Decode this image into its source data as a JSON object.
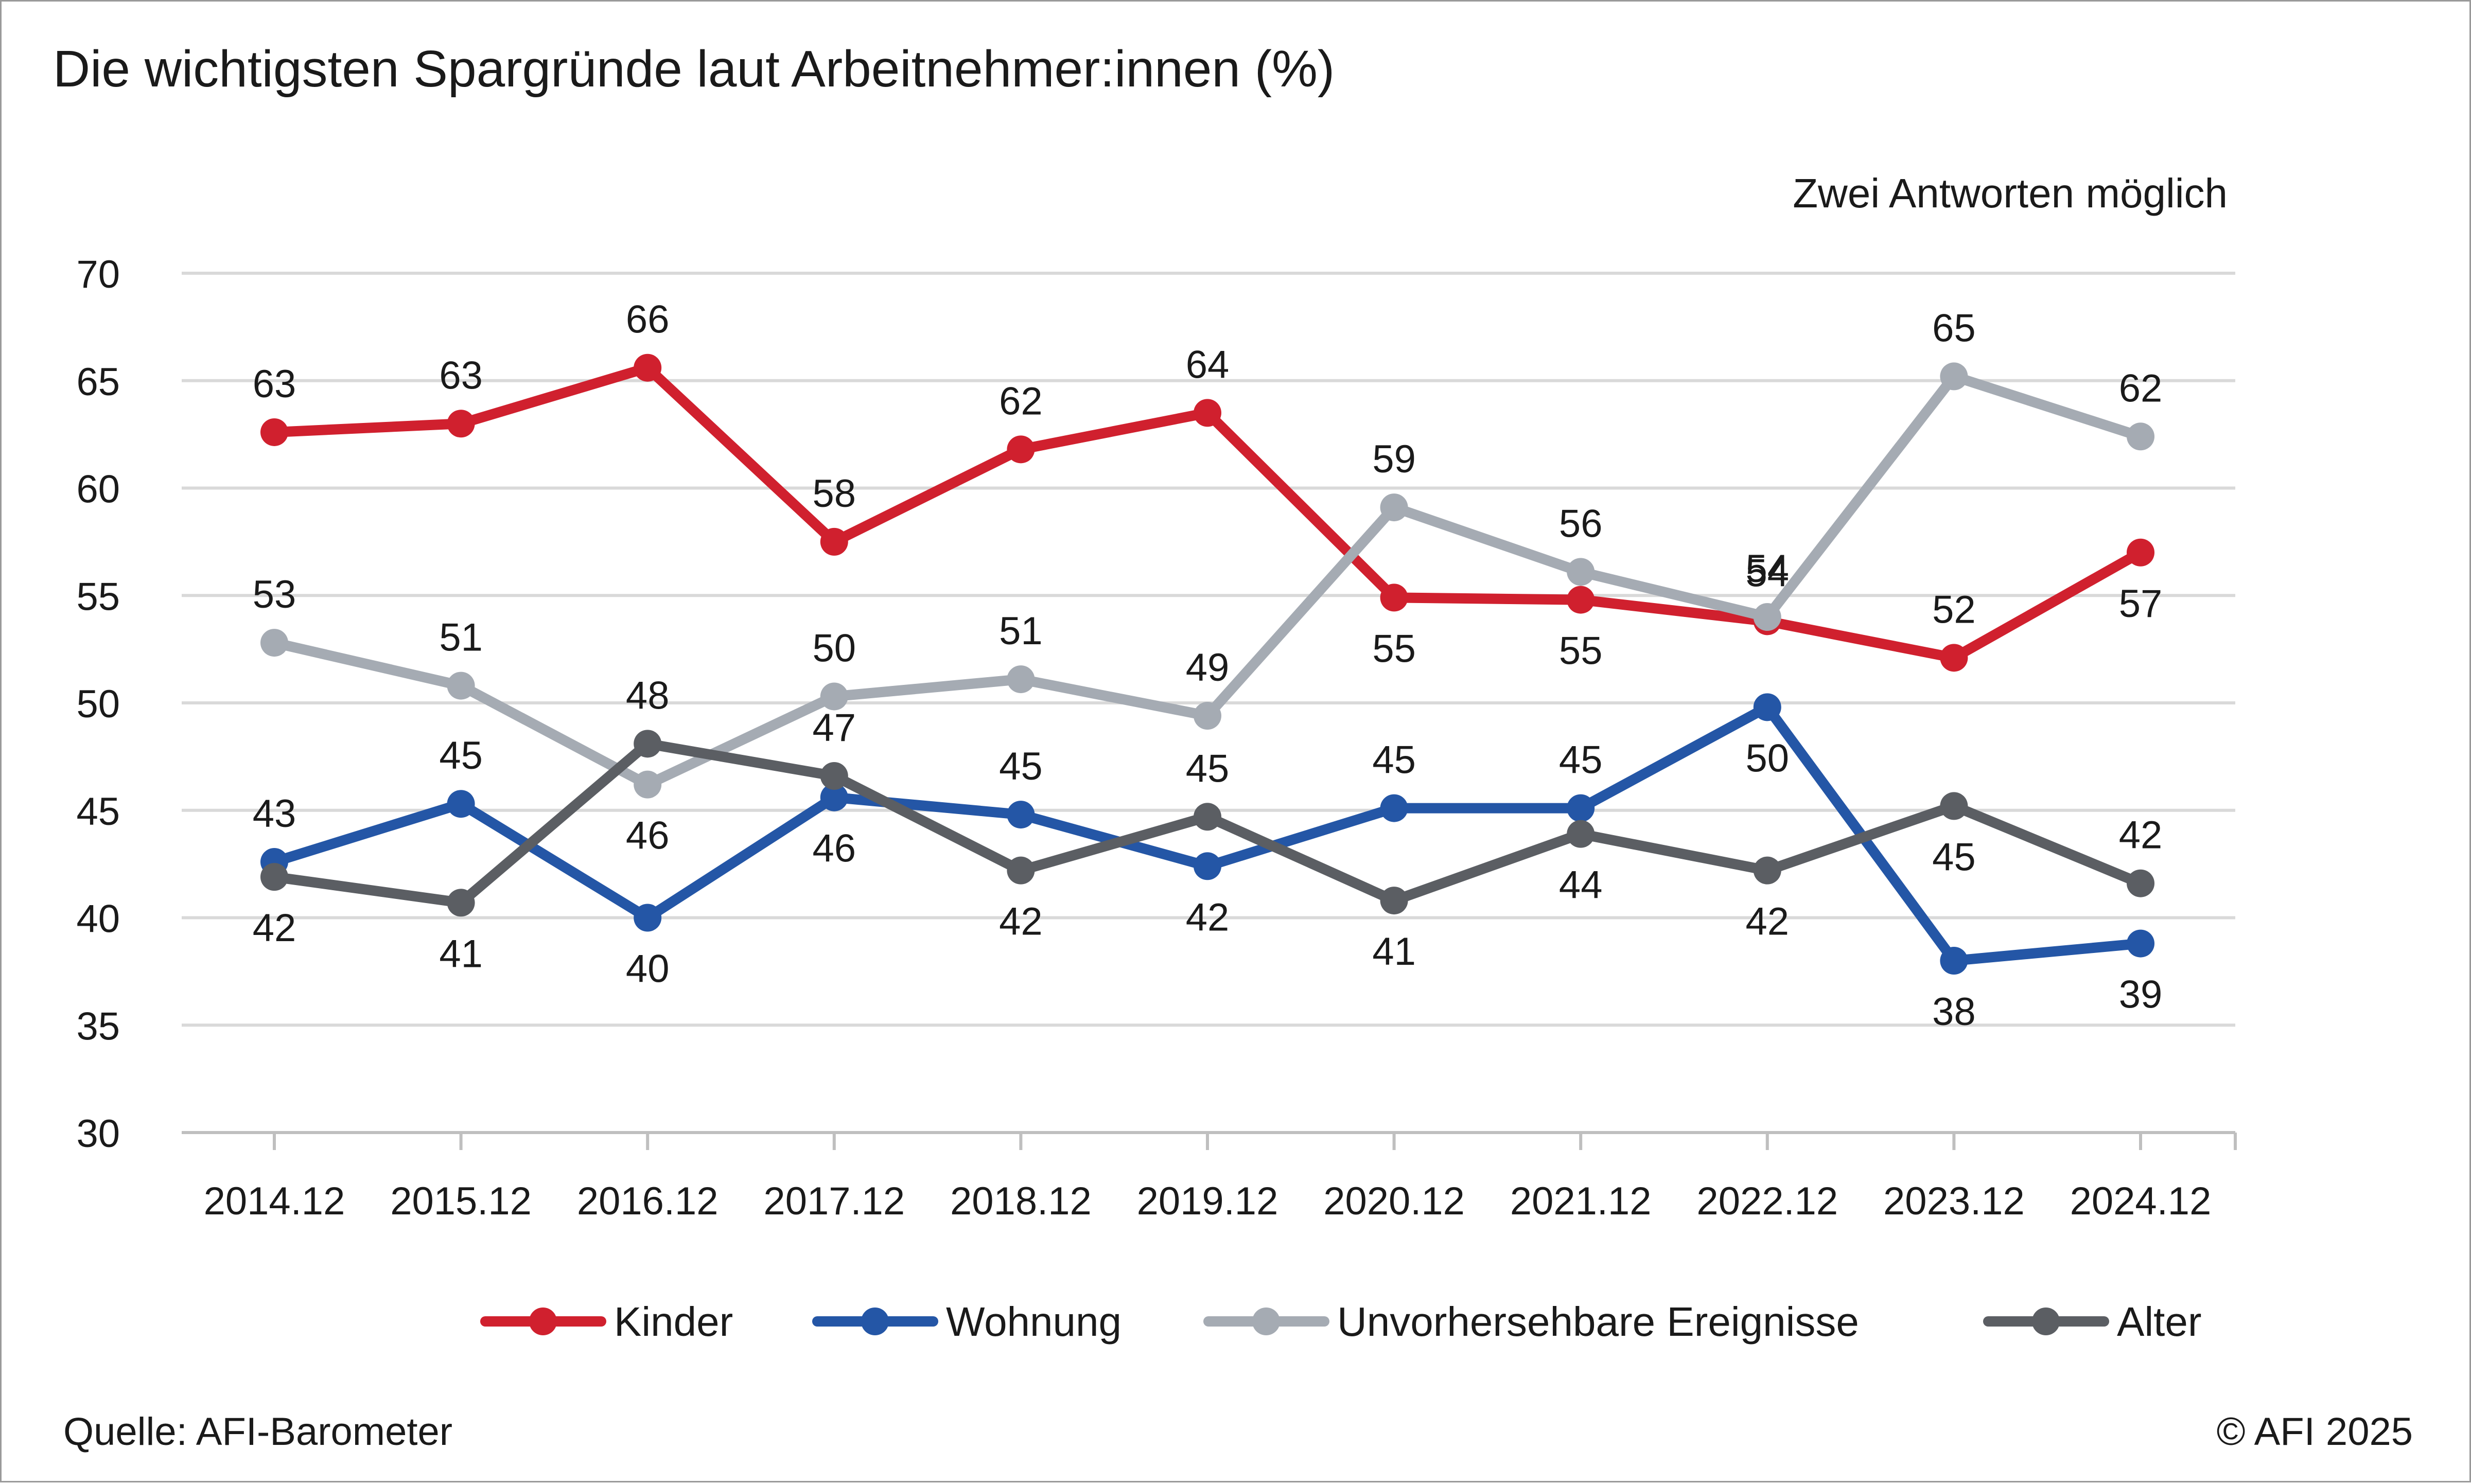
{
  "chart_data": {
    "type": "line",
    "title": "Die wichtigsten Spargründe laut Arbeitnehmer:innen (%)",
    "subtitle": "Zwei Antworten möglich",
    "xlabel": "",
    "ylabel": "",
    "ylim": [
      30,
      70
    ],
    "yticks": [
      30,
      35,
      40,
      45,
      50,
      55,
      60,
      65,
      70
    ],
    "grid": true,
    "legend_position": "bottom-right",
    "categories": [
      "2014.12",
      "2015.12",
      "2016.12",
      "2017.12",
      "2018.12",
      "2019.12",
      "2020.12",
      "2021.12",
      "2022.12",
      "2023.12",
      "2024.12"
    ],
    "series": [
      {
        "name": "Kinder",
        "color": "#d0202e",
        "values": [
          62.6,
          63.0,
          65.6,
          57.5,
          61.8,
          63.5,
          54.9,
          54.8,
          53.8,
          52.1,
          57.0
        ],
        "labels": [
          "63",
          "63",
          "66",
          "58",
          "62",
          "64",
          "55",
          "55",
          "54",
          "52",
          "57"
        ],
        "label_side": [
          "above",
          "above",
          "above",
          "above",
          "above",
          "above",
          "below",
          "below",
          "above",
          "above",
          "below"
        ]
      },
      {
        "name": "Wohnung",
        "color": "#2456a6",
        "values": [
          42.6,
          45.3,
          40.0,
          45.6,
          44.8,
          42.4,
          45.1,
          45.1,
          49.8,
          38.0,
          38.8
        ],
        "labels": [
          "43",
          "45",
          "40",
          "46",
          "45",
          "42",
          "45",
          "45",
          "50",
          "38",
          "39"
        ],
        "label_side": [
          "above",
          "above",
          "below",
          "below",
          "above",
          "below",
          "above",
          "above",
          "below",
          "below",
          "below"
        ]
      },
      {
        "name": "Unvorhersehbare Ereignisse",
        "color": "#a5abb3",
        "values": [
          52.8,
          50.8,
          46.2,
          50.3,
          51.1,
          49.4,
          59.1,
          56.1,
          54.0,
          65.2,
          62.4
        ],
        "labels": [
          "53",
          "51",
          "46",
          "50",
          "51",
          "49",
          "59",
          "56",
          "54",
          "65",
          "62"
        ],
        "label_side": [
          "above",
          "above",
          "below",
          "above",
          "above",
          "above",
          "above",
          "above",
          "above",
          "above",
          "above"
        ]
      },
      {
        "name": "Alter",
        "color": "#5b5e63",
        "values": [
          41.9,
          40.7,
          48.1,
          46.6,
          42.2,
          44.7,
          40.8,
          43.9,
          42.2,
          45.2,
          41.6
        ],
        "labels": [
          "42",
          "41",
          "48",
          "47",
          "42",
          "45",
          "41",
          "44",
          "42",
          "45",
          "42"
        ],
        "label_side": [
          "below",
          "below",
          "above",
          "above",
          "below",
          "above",
          "below",
          "below",
          "below",
          "below",
          "above"
        ]
      }
    ],
    "source": "Quelle: AFI-Barometer",
    "copyright": "© AFI 2025"
  }
}
